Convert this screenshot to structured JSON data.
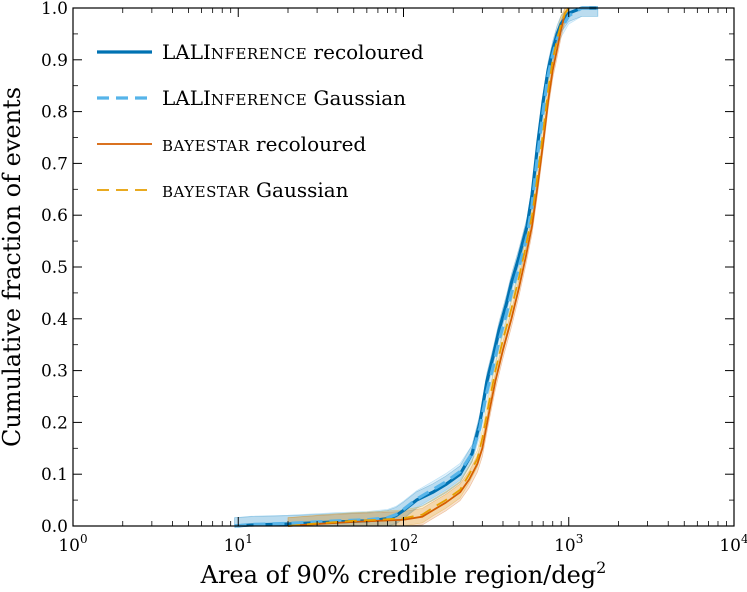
{
  "chart_data": {
    "type": "line",
    "xscale": "log",
    "xlabel_text": "Area of 90% credible region/deg",
    "xlabel_sup": "2",
    "ylabel": "Cumulative fraction of events",
    "xlim": [
      1,
      10000
    ],
    "ylim": [
      0.0,
      1.0
    ],
    "x_ticks": [
      {
        "value": 1,
        "base": "10",
        "exp": "0"
      },
      {
        "value": 10,
        "base": "10",
        "exp": "1"
      },
      {
        "value": 100,
        "base": "10",
        "exp": "2"
      },
      {
        "value": 1000,
        "base": "10",
        "exp": "3"
      },
      {
        "value": 10000,
        "base": "10",
        "exp": "4"
      }
    ],
    "y_ticks": [
      "0.0",
      "0.1",
      "0.2",
      "0.3",
      "0.4",
      "0.5",
      "0.6",
      "0.7",
      "0.8",
      "0.9",
      "1.0"
    ],
    "legend_position": "top-left",
    "series": [
      {
        "name": "LALInference recoloured",
        "legend_main": "LALI",
        "legend_sc": "nference",
        "legend_tail": " recoloured",
        "color": "#0072b2",
        "dash": "solid",
        "width": 3.2,
        "band_half_width": 0.016,
        "points": [
          [
            9.5,
            0.0
          ],
          [
            12,
            0.002
          ],
          [
            20,
            0.004
          ],
          [
            40,
            0.008
          ],
          [
            60,
            0.01
          ],
          [
            80,
            0.014
          ],
          [
            90,
            0.02
          ],
          [
            100,
            0.03
          ],
          [
            120,
            0.05
          ],
          [
            150,
            0.065
          ],
          [
            180,
            0.08
          ],
          [
            220,
            0.1
          ],
          [
            260,
            0.14
          ],
          [
            290,
            0.2
          ],
          [
            320,
            0.28
          ],
          [
            350,
            0.33
          ],
          [
            380,
            0.38
          ],
          [
            420,
            0.43
          ],
          [
            450,
            0.47
          ],
          [
            500,
            0.52
          ],
          [
            560,
            0.58
          ],
          [
            600,
            0.64
          ],
          [
            650,
            0.74
          ],
          [
            700,
            0.82
          ],
          [
            750,
            0.88
          ],
          [
            800,
            0.92
          ],
          [
            850,
            0.95
          ],
          [
            900,
            0.97
          ],
          [
            1000,
            0.99
          ],
          [
            1200,
            1.0
          ],
          [
            1500,
            1.0
          ]
        ]
      },
      {
        "name": "LALInference Gaussian",
        "legend_main": "LALI",
        "legend_sc": "nference",
        "legend_tail": " Gaussian",
        "color": "#56b4e9",
        "dash": "dashed",
        "width": 3.2,
        "band_half_width": 0.016,
        "points": [
          [
            9.5,
            0.0
          ],
          [
            12,
            0.003
          ],
          [
            20,
            0.005
          ],
          [
            40,
            0.01
          ],
          [
            60,
            0.012
          ],
          [
            80,
            0.016
          ],
          [
            90,
            0.022
          ],
          [
            100,
            0.032
          ],
          [
            120,
            0.052
          ],
          [
            150,
            0.07
          ],
          [
            180,
            0.085
          ],
          [
            220,
            0.105
          ],
          [
            260,
            0.14
          ],
          [
            290,
            0.19
          ],
          [
            320,
            0.26
          ],
          [
            350,
            0.31
          ],
          [
            380,
            0.36
          ],
          [
            420,
            0.41
          ],
          [
            450,
            0.45
          ],
          [
            500,
            0.5
          ],
          [
            560,
            0.56
          ],
          [
            600,
            0.62
          ],
          [
            650,
            0.72
          ],
          [
            700,
            0.8
          ],
          [
            750,
            0.87
          ],
          [
            800,
            0.91
          ],
          [
            850,
            0.94
          ],
          [
            900,
            0.96
          ],
          [
            1000,
            0.985
          ],
          [
            1200,
            1.0
          ],
          [
            1500,
            1.0
          ]
        ]
      },
      {
        "name": "BAYESTAR recoloured",
        "legend_main": "",
        "legend_sc": "bayestar",
        "legend_tail": " recoloured",
        "color": "#d55e00",
        "dash": "solid",
        "width": 1.8,
        "band_half_width": 0.016,
        "points": [
          [
            20,
            0.0
          ],
          [
            30,
            0.004
          ],
          [
            50,
            0.008
          ],
          [
            70,
            0.01
          ],
          [
            100,
            0.012
          ],
          [
            130,
            0.018
          ],
          [
            150,
            0.03
          ],
          [
            180,
            0.045
          ],
          [
            220,
            0.065
          ],
          [
            250,
            0.09
          ],
          [
            280,
            0.12
          ],
          [
            300,
            0.15
          ],
          [
            330,
            0.22
          ],
          [
            360,
            0.28
          ],
          [
            400,
            0.34
          ],
          [
            450,
            0.4
          ],
          [
            500,
            0.46
          ],
          [
            550,
            0.52
          ],
          [
            600,
            0.58
          ],
          [
            650,
            0.66
          ],
          [
            700,
            0.74
          ],
          [
            750,
            0.82
          ],
          [
            800,
            0.88
          ],
          [
            850,
            0.92
          ],
          [
            900,
            0.96
          ],
          [
            950,
            0.99
          ],
          [
            1000,
            1.0
          ]
        ]
      },
      {
        "name": "BAYESTAR Gaussian",
        "legend_main": "",
        "legend_sc": "bayestar",
        "legend_tail": " Gaussian",
        "color": "#e69f00",
        "dash": "dashed",
        "width": 1.8,
        "band_half_width": 0.016,
        "points": [
          [
            20,
            0.0
          ],
          [
            30,
            0.005
          ],
          [
            50,
            0.01
          ],
          [
            70,
            0.012
          ],
          [
            100,
            0.015
          ],
          [
            130,
            0.022
          ],
          [
            150,
            0.035
          ],
          [
            180,
            0.05
          ],
          [
            220,
            0.07
          ],
          [
            250,
            0.1
          ],
          [
            280,
            0.13
          ],
          [
            300,
            0.17
          ],
          [
            330,
            0.24
          ],
          [
            360,
            0.3
          ],
          [
            400,
            0.36
          ],
          [
            450,
            0.42
          ],
          [
            500,
            0.48
          ],
          [
            550,
            0.54
          ],
          [
            600,
            0.6
          ],
          [
            650,
            0.68
          ],
          [
            700,
            0.76
          ],
          [
            750,
            0.84
          ],
          [
            800,
            0.9
          ],
          [
            850,
            0.94
          ],
          [
            900,
            0.97
          ],
          [
            950,
            0.99
          ],
          [
            1000,
            1.0
          ]
        ]
      }
    ]
  }
}
